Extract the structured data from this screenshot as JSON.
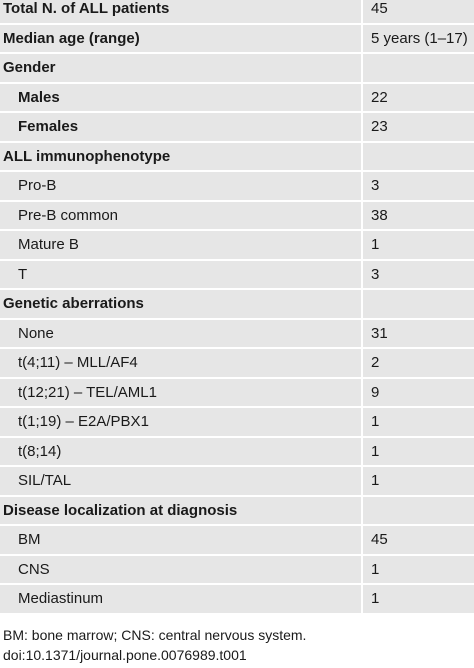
{
  "table": {
    "summary": [
      {
        "label": "Total N. of ALL patients",
        "value": 45
      },
      {
        "label": "Median age (range)",
        "value": "5 years (1–17)"
      }
    ],
    "sections": [
      {
        "title": "Gender",
        "bold_items": true,
        "items": [
          {
            "label": "Males",
            "value": 22
          },
          {
            "label": "Females",
            "value": 23
          }
        ]
      },
      {
        "title": "ALL immunophenotype",
        "bold_items": false,
        "items": [
          {
            "label": "Pro-B",
            "value": 3
          },
          {
            "label": "Pre-B common",
            "value": 38
          },
          {
            "label": "Mature B",
            "value": 1
          },
          {
            "label": "T",
            "value": 3
          }
        ]
      },
      {
        "title": "Genetic aberrations",
        "bold_items": false,
        "items": [
          {
            "label": "None",
            "value": 31
          },
          {
            "label": "t(4;11) – MLL/AF4",
            "value": 2
          },
          {
            "label": "t(12;21) – TEL/AML1",
            "value": 9
          },
          {
            "label": "t(1;19) – E2A/PBX1",
            "value": 1
          },
          {
            "label": "t(8;14)",
            "value": 1
          },
          {
            "label": "SIL/TAL",
            "value": 1
          }
        ]
      },
      {
        "title": "Disease localization at diagnosis",
        "bold_items": false,
        "items": [
          {
            "label": "BM",
            "value": 45
          },
          {
            "label": "CNS",
            "value": 1
          },
          {
            "label": "Mediastinum",
            "value": 1
          }
        ]
      }
    ]
  },
  "footnotes": [
    "BM: bone marrow; CNS: central nervous system.",
    "doi:10.1371/journal.pone.0076989.t001"
  ]
}
